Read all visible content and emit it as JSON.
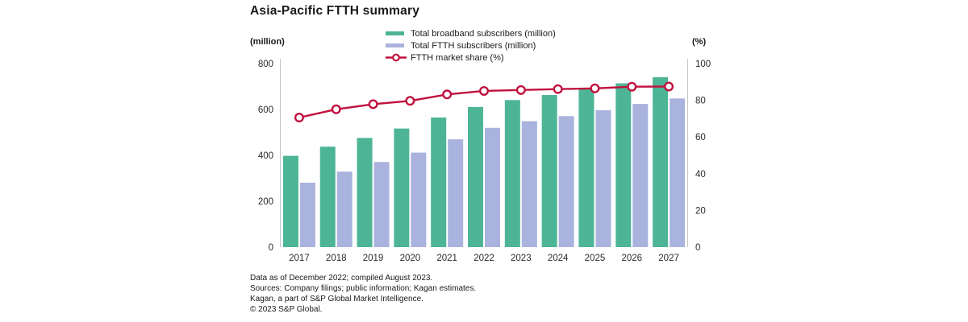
{
  "title": "Asia-Pacific FTTH summary",
  "footer": {
    "lines": [
      "Data as of December 2022; compiled August 2023.",
      "Sources: Company filings; public information; Kagan estimates.",
      "Kagan, a part of S&P Global Market Intelligence.",
      "© 2023 S&P Global."
    ]
  },
  "colors": {
    "broadband_green": "#4db596",
    "ftth_lavender": "#aab3dd",
    "share_crimson": "#c1123e",
    "axis_gray": "#c6c6c6",
    "tick_text": "#2b2b2b"
  },
  "chart_data": {
    "type": "bar",
    "subtype": "grouped bars with overlay line",
    "title": "Asia-Pacific FTTH summary",
    "categories": [
      "2017",
      "2018",
      "2019",
      "2020",
      "2021",
      "2022",
      "2023",
      "2024",
      "2025",
      "2026",
      "2027"
    ],
    "series": [
      {
        "name": "Total broadband subscribers (million)",
        "type": "bar",
        "axis": "left",
        "color": "#4db596",
        "values": [
          398,
          438,
          476,
          517,
          565,
          611,
          641,
          663,
          690,
          714,
          741
        ]
      },
      {
        "name": "Total FTTH subscribers (million)",
        "type": "bar",
        "axis": "left",
        "color": "#aab3dd",
        "values": [
          281,
          329,
          371,
          412,
          470,
          520,
          549,
          571,
          597,
          624,
          648
        ]
      },
      {
        "name": "FTTH market share (%)",
        "type": "line",
        "axis": "right",
        "color": "#c1123e",
        "values": [
          70.6,
          75.1,
          77.9,
          79.7,
          83.2,
          85.1,
          85.6,
          86.1,
          86.5,
          87.4,
          87.5
        ]
      }
    ],
    "left_axis": {
      "label": "(million)",
      "min": 0,
      "max": 800,
      "ticks": [
        0,
        200,
        400,
        600,
        800
      ]
    },
    "right_axis": {
      "label": "(%)",
      "min": 0,
      "max": 100,
      "ticks": [
        0,
        20,
        40,
        60,
        80,
        100
      ]
    },
    "grid": false,
    "legend_position": "top"
  }
}
